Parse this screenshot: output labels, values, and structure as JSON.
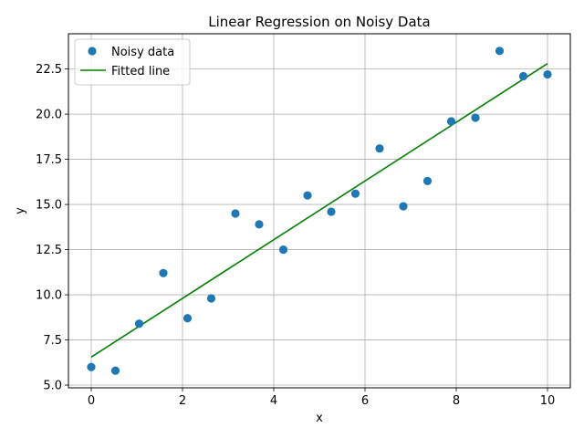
{
  "chart_data": {
    "type": "scatter",
    "title": "Linear Regression on Noisy Data",
    "xlabel": "x",
    "ylabel": "y",
    "xlim": [
      -0.5,
      10.5
    ],
    "ylim": [
      4.85,
      24.45
    ],
    "xticks": [
      0,
      2,
      4,
      6,
      8,
      10
    ],
    "xtick_labels": [
      "0",
      "2",
      "4",
      "6",
      "8",
      "10"
    ],
    "yticks": [
      5.0,
      7.5,
      10.0,
      12.5,
      15.0,
      17.5,
      20.0,
      22.5
    ],
    "ytick_labels": [
      "5.0",
      "7.5",
      "10.0",
      "12.5",
      "15.0",
      "17.5",
      "20.0",
      "22.5"
    ],
    "grid": true,
    "legend_position": "upper-left",
    "series": [
      {
        "name": "Noisy data",
        "kind": "scatter",
        "color": "#1f77b4",
        "x": [
          0.0,
          0.53,
          1.05,
          1.58,
          2.11,
          2.63,
          3.16,
          3.68,
          4.21,
          4.74,
          5.26,
          5.79,
          6.32,
          6.84,
          7.37,
          7.89,
          8.42,
          8.95,
          9.47,
          10.0
        ],
        "y": [
          6.0,
          5.8,
          8.4,
          11.2,
          8.7,
          9.8,
          14.5,
          13.9,
          12.5,
          15.5,
          14.6,
          15.6,
          18.1,
          14.9,
          16.3,
          19.6,
          19.8,
          23.5,
          22.1,
          22.2
        ]
      },
      {
        "name": "Fitted line",
        "kind": "line",
        "color": "#008000",
        "x": [
          0,
          10
        ],
        "y": [
          6.55,
          22.8
        ]
      }
    ]
  }
}
